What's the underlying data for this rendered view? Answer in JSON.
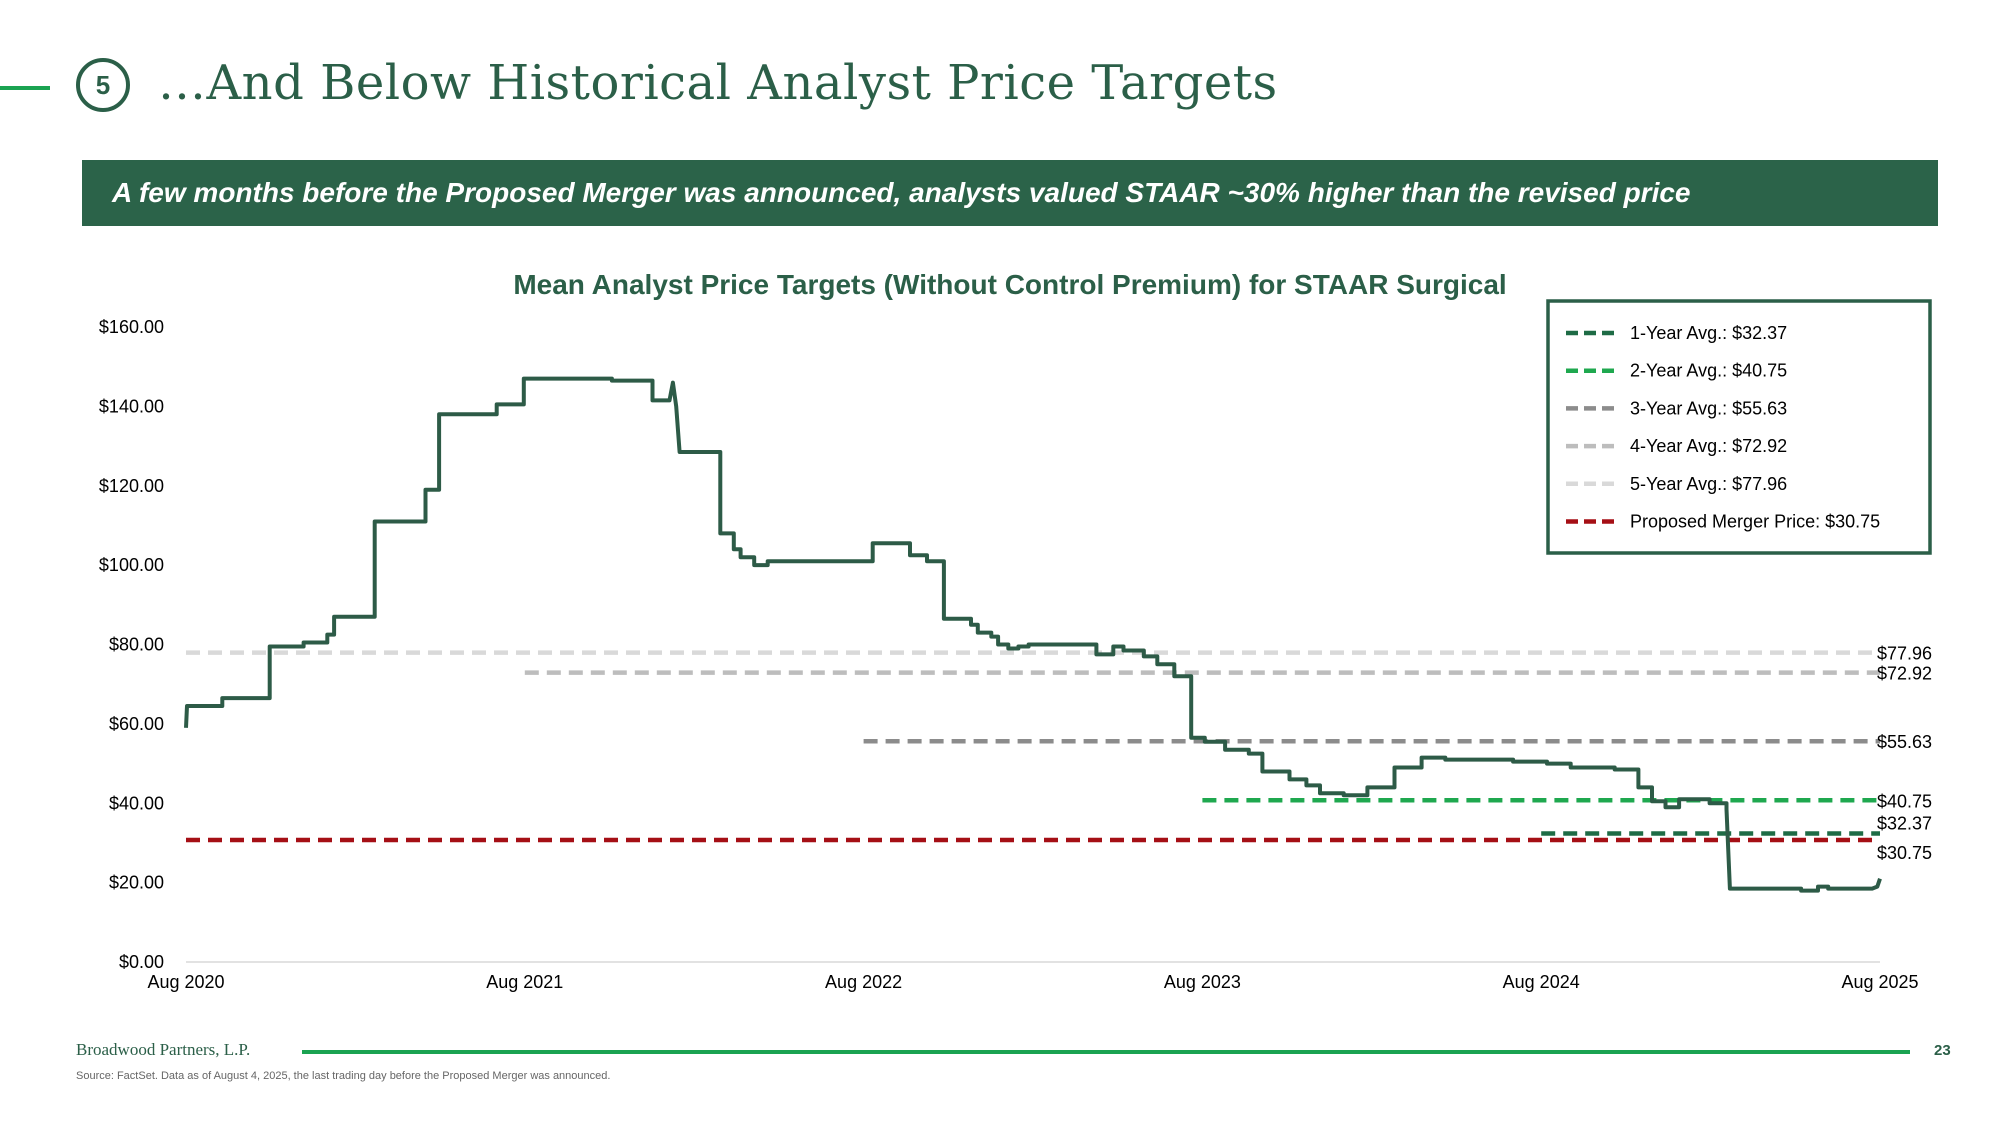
{
  "header": {
    "step_number": "5",
    "title": "…And Below Historical Analyst Price Targets",
    "banner": "A few months before the Proposed Merger was announced, analysts valued STAAR ~30% higher than the revised price"
  },
  "footer": {
    "brand": "Broadwood Partners, L.P.",
    "page_number": "23",
    "source": "Source: FactSet. Data as of August 4, 2025, the last trading day before the Proposed Merger was announced."
  },
  "colors": {
    "brand_green": "#2b5f48",
    "accent_green": "#1aa351",
    "line_green": "#2d5b47",
    "merger_red": "#a50f15"
  },
  "chart_data": {
    "type": "line",
    "title": "Mean Analyst Price Targets (Without Control Premium) for STAAR Surgical",
    "xlabel": "",
    "ylabel": "",
    "x_domain": [
      2020.583,
      2025.583
    ],
    "ylim": [
      0,
      160
    ],
    "y_ticks": [
      0,
      20,
      40,
      60,
      80,
      100,
      120,
      140,
      160
    ],
    "y_tick_labels": [
      "$0.00",
      "$20.00",
      "$40.00",
      "$60.00",
      "$80.00",
      "$100.00",
      "$120.00",
      "$140.00",
      "$160.00"
    ],
    "x_ticks": [
      2020.583,
      2021.583,
      2022.583,
      2023.583,
      2024.583,
      2025.583
    ],
    "x_tick_labels": [
      "Aug 2020",
      "Aug 2021",
      "Aug 2022",
      "Aug 2023",
      "Aug 2024",
      "Aug 2025"
    ],
    "grid": false,
    "legend_position": "top-right",
    "series": [
      {
        "name": "Mean Analyst Price Target",
        "color": "#2d5b47",
        "step": true,
        "points": [
          [
            2020.583,
            59
          ],
          [
            2020.586,
            64.5
          ],
          [
            2020.69,
            64.5
          ],
          [
            2020.69,
            66.5
          ],
          [
            2020.83,
            66.5
          ],
          [
            2020.83,
            79.5
          ],
          [
            2020.93,
            79.5
          ],
          [
            2020.93,
            80.5
          ],
          [
            2021.0,
            80.5
          ],
          [
            2021.0,
            82.5
          ],
          [
            2021.02,
            82.5
          ],
          [
            2021.02,
            87
          ],
          [
            2021.14,
            87
          ],
          [
            2021.14,
            111
          ],
          [
            2021.29,
            111
          ],
          [
            2021.29,
            119
          ],
          [
            2021.33,
            119
          ],
          [
            2021.33,
            138
          ],
          [
            2021.5,
            138
          ],
          [
            2021.5,
            140.5
          ],
          [
            2021.58,
            140.5
          ],
          [
            2021.58,
            147
          ],
          [
            2021.84,
            147
          ],
          [
            2021.84,
            146.5
          ],
          [
            2021.96,
            146.5
          ],
          [
            2021.96,
            141.5
          ],
          [
            2022.01,
            141.5
          ],
          [
            2022.02,
            146
          ],
          [
            2022.03,
            140
          ],
          [
            2022.04,
            128.5
          ],
          [
            2022.16,
            128.5
          ],
          [
            2022.16,
            108
          ],
          [
            2022.2,
            108
          ],
          [
            2022.2,
            104
          ],
          [
            2022.22,
            104
          ],
          [
            2022.22,
            102
          ],
          [
            2022.26,
            102
          ],
          [
            2022.26,
            100
          ],
          [
            2022.3,
            100
          ],
          [
            2022.3,
            101
          ],
          [
            2022.61,
            101
          ],
          [
            2022.61,
            105.5
          ],
          [
            2022.72,
            105.5
          ],
          [
            2022.72,
            102.5
          ],
          [
            2022.77,
            102.5
          ],
          [
            2022.77,
            101
          ],
          [
            2022.82,
            101
          ],
          [
            2022.82,
            86.5
          ],
          [
            2022.9,
            86.5
          ],
          [
            2022.9,
            85
          ],
          [
            2022.92,
            85
          ],
          [
            2022.92,
            83
          ],
          [
            2022.96,
            83
          ],
          [
            2022.96,
            82
          ],
          [
            2022.98,
            82
          ],
          [
            2022.98,
            80
          ],
          [
            2023.01,
            80
          ],
          [
            2023.01,
            79
          ],
          [
            2023.04,
            79
          ],
          [
            2023.04,
            79.5
          ],
          [
            2023.07,
            79.5
          ],
          [
            2023.07,
            80
          ],
          [
            2023.27,
            80
          ],
          [
            2023.27,
            77.5
          ],
          [
            2023.32,
            77.5
          ],
          [
            2023.32,
            79.5
          ],
          [
            2023.35,
            79.5
          ],
          [
            2023.35,
            78.5
          ],
          [
            2023.41,
            78.5
          ],
          [
            2023.41,
            77
          ],
          [
            2023.45,
            77
          ],
          [
            2023.45,
            75
          ],
          [
            2023.5,
            75
          ],
          [
            2023.5,
            72
          ],
          [
            2023.55,
            72
          ],
          [
            2023.55,
            56.5
          ],
          [
            2023.59,
            56.5
          ],
          [
            2023.59,
            55.5
          ],
          [
            2023.65,
            55.5
          ],
          [
            2023.65,
            53.5
          ],
          [
            2023.72,
            53.5
          ],
          [
            2023.72,
            52.5
          ],
          [
            2023.76,
            52.5
          ],
          [
            2023.76,
            48
          ],
          [
            2023.84,
            48
          ],
          [
            2023.84,
            46
          ],
          [
            2023.89,
            46
          ],
          [
            2023.89,
            44.5
          ],
          [
            2023.93,
            44.5
          ],
          [
            2023.93,
            42.5
          ],
          [
            2024.0,
            42.5
          ],
          [
            2024.0,
            42
          ],
          [
            2024.07,
            42
          ],
          [
            2024.07,
            44
          ],
          [
            2024.15,
            44
          ],
          [
            2024.15,
            49
          ],
          [
            2024.23,
            49
          ],
          [
            2024.23,
            51.5
          ],
          [
            2024.3,
            51.5
          ],
          [
            2024.3,
            51
          ],
          [
            2024.5,
            51
          ],
          [
            2024.5,
            50.5
          ],
          [
            2024.6,
            50.5
          ],
          [
            2024.6,
            50
          ],
          [
            2024.67,
            50
          ],
          [
            2024.67,
            49
          ],
          [
            2024.8,
            49
          ],
          [
            2024.8,
            48.5
          ],
          [
            2024.87,
            48.5
          ],
          [
            2024.87,
            44
          ],
          [
            2024.91,
            44
          ],
          [
            2024.91,
            40.5
          ],
          [
            2024.95,
            40.5
          ],
          [
            2024.95,
            39
          ],
          [
            2024.99,
            39
          ],
          [
            2024.99,
            41
          ],
          [
            2025.08,
            41
          ],
          [
            2025.08,
            40
          ],
          [
            2025.13,
            40
          ],
          [
            2025.13,
            38.5
          ],
          [
            2025.14,
            18.5
          ],
          [
            2025.35,
            18.5
          ],
          [
            2025.35,
            18
          ],
          [
            2025.4,
            18
          ],
          [
            2025.4,
            19
          ],
          [
            2025.43,
            19
          ],
          [
            2025.43,
            18.5
          ],
          [
            2025.56,
            18.5
          ],
          [
            2025.575,
            19
          ],
          [
            2025.583,
            21
          ]
        ]
      }
    ],
    "reference_lines": [
      {
        "label": "1-Year Avg.: $32.37",
        "value": 32.37,
        "value_label": "$32.37",
        "x_start": 2024.583,
        "color": "#1e6b45"
      },
      {
        "label": "2-Year Avg.: $40.75",
        "value": 40.75,
        "value_label": "$40.75",
        "x_start": 2023.583,
        "color": "#1fa84f"
      },
      {
        "label": "3-Year Avg.: $55.63",
        "value": 55.63,
        "value_label": "$55.63",
        "x_start": 2022.583,
        "color": "#8c8c8c"
      },
      {
        "label": "4-Year Avg.: $72.92",
        "value": 72.92,
        "value_label": "$72.92",
        "x_start": 2021.583,
        "color": "#bdbdbd"
      },
      {
        "label": "5-Year Avg.: $77.96",
        "value": 77.96,
        "value_label": "$77.96",
        "x_start": 2020.583,
        "color": "#d9d9d9"
      },
      {
        "label": "Proposed Merger Price: $30.75",
        "value": 30.75,
        "value_label": "$30.75",
        "x_start": 2020.583,
        "color": "#a50f15"
      }
    ]
  }
}
